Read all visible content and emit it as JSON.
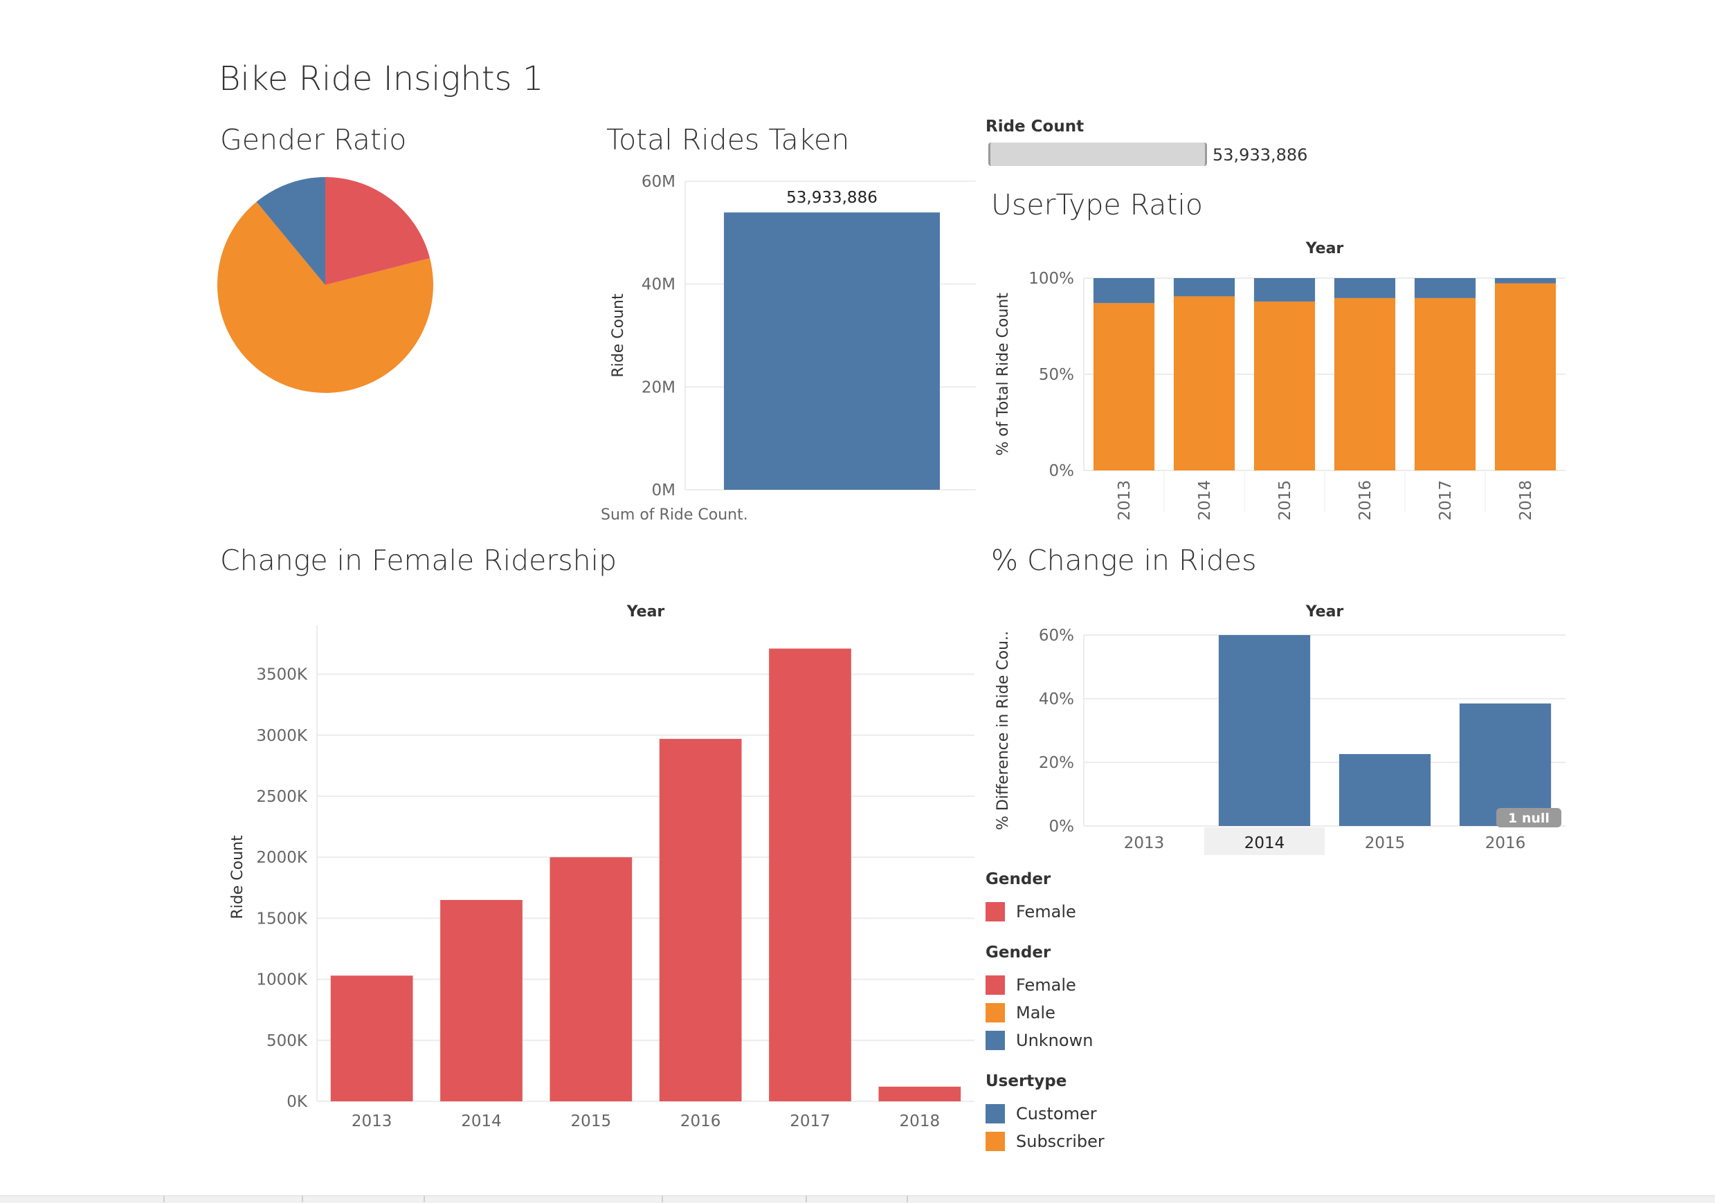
{
  "dashboard": {
    "title": "Bike Ride Insights 1"
  },
  "colors": {
    "female": "#e15759",
    "male": "#f28e2b",
    "unknown": "#4e79a7",
    "customer": "#4e79a7",
    "subscriber": "#f28e2b",
    "gridline": "#ececec",
    "axis_text": "#666666"
  },
  "gender_ratio": {
    "title": "Gender Ratio",
    "chart_data": {
      "type": "pie",
      "categories": [
        "Female",
        "Male",
        "Unknown"
      ],
      "values": [
        21,
        68,
        11
      ],
      "colors": [
        "#e15759",
        "#f28e2b",
        "#4e79a7"
      ]
    }
  },
  "total_rides": {
    "title": "Total Rides Taken",
    "footnote": "Sum of Ride Count.",
    "chart_data": {
      "type": "bar",
      "values": [
        53933886
      ],
      "data_labels": [
        "53,933,886"
      ],
      "ylabel": "Ride Count",
      "yticks": [
        "60M",
        "40M",
        "20M",
        "0M"
      ],
      "ylim": [
        0,
        60000000
      ]
    }
  },
  "ride_count_filter": {
    "label": "Ride Count",
    "value": "53,933,886"
  },
  "usertype_ratio": {
    "title": "UserType Ratio",
    "chart_data": {
      "type": "bar",
      "stacked": true,
      "xlabel": "Year",
      "ylabel": "% of Total Ride Count",
      "categories": [
        "2013",
        "2014",
        "2015",
        "2016",
        "2017",
        "2018"
      ],
      "yticks": [
        "100%",
        "50%",
        "0%"
      ],
      "ylim": [
        0,
        100
      ],
      "series": [
        {
          "name": "Subscriber",
          "values": [
            87,
            90.5,
            87.8,
            89.6,
            89.6,
            97.3
          ],
          "color": "#f28e2b"
        },
        {
          "name": "Customer",
          "values": [
            13,
            9.5,
            12.2,
            10.4,
            10.4,
            2.7
          ],
          "color": "#4e79a7"
        }
      ]
    }
  },
  "female_ridership": {
    "title": "Change in Female Ridership",
    "chart_data": {
      "type": "bar",
      "xlabel": "Year",
      "ylabel": "Ride Count",
      "categories": [
        "2013",
        "2014",
        "2015",
        "2016",
        "2017",
        "2018"
      ],
      "values": [
        1030000,
        1650000,
        2000000,
        2970000,
        3710000,
        120000
      ],
      "yticks": [
        "3500K",
        "3000K",
        "2500K",
        "2000K",
        "1500K",
        "1000K",
        "500K",
        "0K"
      ],
      "ylim": [
        0,
        3900000
      ],
      "color": "#e15759"
    }
  },
  "pct_change": {
    "title": "% Change in Rides",
    "null_badge": "1 null",
    "chart_data": {
      "type": "bar",
      "xlabel": "Year",
      "ylabel": "% Difference in Ride Cou..",
      "categories": [
        "2013",
        "2014",
        "2015",
        "2016"
      ],
      "values": [
        null,
        60,
        22.6,
        38.5
      ],
      "yticks": [
        "60%",
        "40%",
        "20%",
        "0%"
      ],
      "ylim": [
        0,
        60
      ],
      "highlighted_category": "2014",
      "color": "#4e79a7"
    }
  },
  "legends": [
    {
      "title": "Gender",
      "items": [
        {
          "label": "Female",
          "color": "#e15759"
        }
      ]
    },
    {
      "title": "Gender",
      "items": [
        {
          "label": "Female",
          "color": "#e15759"
        },
        {
          "label": "Male",
          "color": "#f28e2b"
        },
        {
          "label": "Unknown",
          "color": "#4e79a7"
        }
      ]
    },
    {
      "title": "Usertype",
      "items": [
        {
          "label": "Customer",
          "color": "#4e79a7"
        },
        {
          "label": "Subscriber",
          "color": "#f28e2b"
        }
      ]
    }
  ]
}
